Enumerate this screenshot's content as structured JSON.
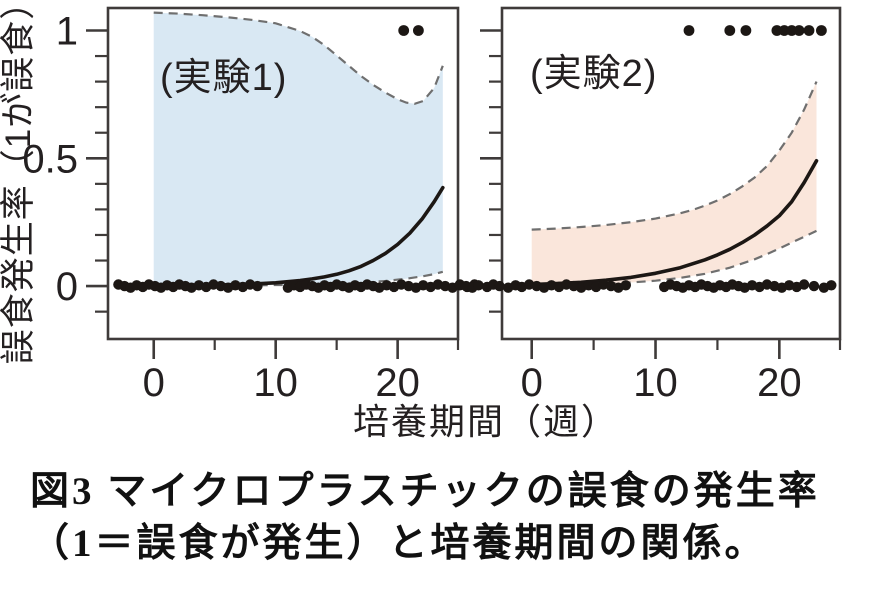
{
  "figure": {
    "caption_line1": "図3 マイクロプラスチックの誤食の発生率",
    "caption_line2": "（1＝誤食が発生）と培養期間の関係。"
  },
  "chart_data": {
    "type": "scatter",
    "title": "",
    "xlabel": "培養期間（週）",
    "ylabel": "誤食発生率（1が誤食）",
    "grid": false,
    "legend": "none",
    "ylim": [
      -0.207,
      1.088
    ],
    "y_ticks_major": [
      0,
      0.5,
      1
    ],
    "y_tick_labels": [
      "0",
      "0.5",
      "1"
    ],
    "y_ticks_minor": [
      -0.1,
      0.1,
      0.2,
      0.3,
      0.4,
      0.6,
      0.7,
      0.8,
      0.9
    ],
    "x_ticks_major": [
      0,
      10,
      20
    ],
    "x_tick_labels": [
      "0",
      "10",
      "20"
    ],
    "x_ticks_minor": [
      5,
      15,
      25
    ],
    "colors": {
      "band_exp1": "#d9e8f3",
      "band_exp2": "#fae6db",
      "dashed": "#6f6f6f",
      "curve": "#1c1714",
      "dot": "#1c1714",
      "frame": "#3f3b3a"
    },
    "panels": [
      {
        "label": "(実験1)",
        "band": "band_exp1",
        "xlim": [
          -3.75,
          24.95
        ],
        "band_x_range": [
          0,
          23.7
        ],
        "fit": {
          "x": [
            0,
            2,
            4,
            6,
            8,
            10,
            11,
            12,
            13,
            14,
            15,
            16,
            17,
            18,
            19,
            20,
            21,
            22,
            23,
            23.7
          ],
          "y": [
            0.001,
            0.002,
            0.003,
            0.005,
            0.008,
            0.013,
            0.017,
            0.022,
            0.028,
            0.036,
            0.046,
            0.06,
            0.077,
            0.1,
            0.128,
            0.163,
            0.207,
            0.262,
            0.33,
            0.385
          ]
        },
        "ci_upper": {
          "x": [
            0,
            2,
            4,
            6,
            8,
            10,
            12,
            13,
            14,
            15,
            16,
            17,
            18,
            19,
            20,
            20.7,
            21.4,
            22.1,
            23,
            23.7
          ],
          "y": [
            1.07,
            1.066,
            1.06,
            1.052,
            1.042,
            1.028,
            0.998,
            0.975,
            0.942,
            0.902,
            0.862,
            0.822,
            0.787,
            0.757,
            0.731,
            0.718,
            0.713,
            0.724,
            0.775,
            0.862
          ]
        },
        "ci_lower": {
          "x": [
            0,
            4,
            8,
            12,
            15,
            17,
            19,
            21,
            22,
            23,
            23.7
          ],
          "y": [
            0.002,
            0.002,
            0.003,
            0.005,
            0.009,
            0.013,
            0.02,
            0.031,
            0.038,
            0.047,
            0.056
          ]
        },
        "points_y1": [
          20.5,
          21.7
        ],
        "points_y0": [
          -2.9,
          -2.4,
          -1.9,
          -1.4,
          -0.9,
          -0.4,
          0.1,
          0.6,
          1.1,
          1.6,
          2.1,
          2.6,
          3.1,
          3.7,
          4.3,
          4.9,
          5.5,
          6.1,
          6.7,
          7.3,
          7.9,
          8.5,
          11.0,
          11.5,
          12.0,
          12.5,
          13.0,
          13.5,
          14.0,
          14.5,
          15.0,
          15.5,
          16.0,
          16.5,
          17.0,
          17.5,
          18.0,
          18.5,
          19.1,
          19.7,
          20.3,
          20.9,
          21.5,
          22.1,
          22.7,
          23.3,
          23.9,
          24.5,
          25.1,
          25.7,
          26.3
        ]
      },
      {
        "label": "(実験2)",
        "band": "band_exp2",
        "xlim": [
          -2.4,
          24.9
        ],
        "band_x_range": [
          0,
          23.0
        ],
        "fit": {
          "x": [
            0,
            2,
            4,
            6,
            8,
            10,
            12,
            14,
            15,
            16,
            17,
            18,
            19,
            20,
            21,
            22,
            23
          ],
          "y": [
            0.006,
            0.01,
            0.015,
            0.023,
            0.034,
            0.05,
            0.072,
            0.103,
            0.122,
            0.144,
            0.17,
            0.2,
            0.235,
            0.275,
            0.33,
            0.405,
            0.49
          ]
        },
        "ci_upper": {
          "x": [
            0,
            2,
            4,
            6,
            8,
            10,
            12,
            13,
            14,
            15,
            16,
            17,
            18,
            19,
            20,
            21,
            22,
            23
          ],
          "y": [
            0.221,
            0.225,
            0.231,
            0.239,
            0.25,
            0.264,
            0.285,
            0.298,
            0.315,
            0.335,
            0.36,
            0.39,
            0.425,
            0.47,
            0.53,
            0.6,
            0.69,
            0.8
          ]
        },
        "ci_lower": {
          "x": [
            0,
            2,
            4,
            6,
            8,
            10,
            12,
            14,
            16,
            18,
            19,
            20,
            21,
            22,
            23
          ],
          "y": [
            0.003,
            0.004,
            0.006,
            0.009,
            0.014,
            0.021,
            0.032,
            0.048,
            0.072,
            0.105,
            0.125,
            0.147,
            0.17,
            0.193,
            0.216
          ]
        },
        "points_y1": [
          12.7,
          16.0,
          17.3,
          19.8,
          20.4,
          21.0,
          21.6,
          22.4,
          23.4
        ],
        "points_y0": [
          -5.8,
          -5.3,
          -4.8,
          -4.3,
          -3.6,
          -3.1,
          -2.6,
          -1.9,
          -1.3,
          -0.8,
          -0.2,
          0.4,
          1.0,
          1.6,
          2.2,
          2.8,
          3.4,
          4.0,
          4.6,
          5.2,
          5.8,
          6.4,
          7.0,
          7.6,
          10.7,
          11.2,
          11.7,
          12.2,
          12.7,
          13.2,
          13.7,
          14.2,
          14.7,
          15.2,
          15.7,
          16.2,
          16.7,
          17.2,
          17.8,
          18.4,
          19.0,
          19.6,
          20.2,
          20.8,
          21.4,
          22.0,
          22.8,
          23.6,
          24.2
        ]
      }
    ]
  }
}
